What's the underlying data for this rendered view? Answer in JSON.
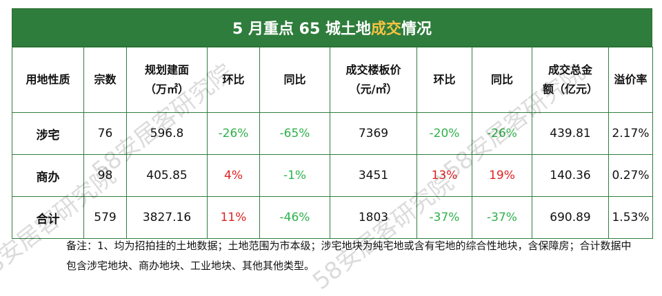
{
  "title": {
    "prefix": "5 月重点 65 城土地",
    "highlight": "成交",
    "suffix": "情况"
  },
  "headers": [
    [
      "用地性质"
    ],
    [
      "宗数"
    ],
    [
      "规划建面",
      "（万㎡）"
    ],
    [
      "环比"
    ],
    [
      "同比"
    ],
    [
      "成交楼板价",
      "（元/㎡）"
    ],
    [
      "环比"
    ],
    [
      "同比"
    ],
    [
      "成交总金",
      "额（亿元）"
    ],
    [
      "溢价率"
    ]
  ],
  "rows": [
    {
      "cells": [
        "涉宅",
        "76",
        "596.8",
        "-26%",
        "-65%",
        "7369",
        "-20%",
        "-26%",
        "439.81",
        "2.17%"
      ],
      "colors": [
        "",
        "",
        "",
        "green",
        "green",
        "",
        "green",
        "green",
        "",
        ""
      ]
    },
    {
      "cells": [
        "商办",
        "98",
        "405.85",
        "4%",
        "-1%",
        "3451",
        "13%",
        "19%",
        "140.36",
        "0.27%"
      ],
      "colors": [
        "",
        "",
        "",
        "red",
        "green",
        "",
        "red",
        "red",
        "",
        ""
      ]
    },
    {
      "cells": [
        "合计",
        "579",
        "3827.16",
        "11%",
        "-46%",
        "1803",
        "-37%",
        "-37%",
        "690.89",
        "1.53%"
      ],
      "colors": [
        "",
        "",
        "",
        "red",
        "green",
        "",
        "green",
        "green",
        "",
        ""
      ]
    }
  ],
  "note": "备注：1、均为招拍挂的土地数据；土地范围为市本级；涉宅地块为纯宅地或含有宅地的综合性地块，含保障房；合计数据中包含涉宅地块、商办地块、工业地块、其他其他类型。",
  "watermark": "58安居客研究院"
}
